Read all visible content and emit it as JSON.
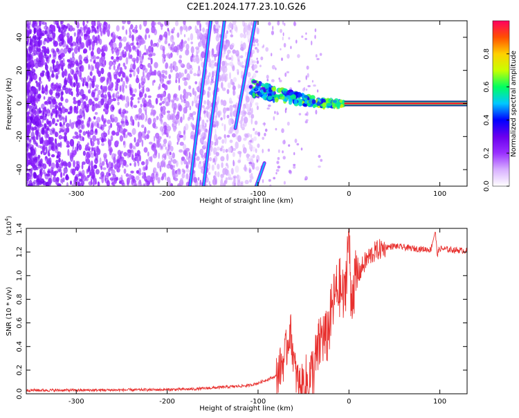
{
  "title": "C2E1.2024.177.23.10.G26",
  "colors": {
    "snr_line": "#e8302e",
    "axis": "#000000",
    "spectrogram_background": "#ffffff"
  },
  "chart_data": [
    {
      "type": "heatmap",
      "name_hint": "spectrogram",
      "xlabel": "Height of straight line (km)",
      "ylabel": "Frequency (Hz)",
      "xlim": [
        -355,
        130
      ],
      "ylim": [
        -50,
        50
      ],
      "x_ticks": [
        -300,
        -200,
        -100,
        0,
        100
      ],
      "y_ticks": [
        -40,
        -20,
        0,
        20,
        40
      ],
      "x_tick_labels": [
        "-300",
        "-200",
        "-100",
        "0",
        "100"
      ],
      "y_tick_labels": [
        "-40",
        "-20",
        "0",
        "20",
        "40"
      ],
      "colorbar": {
        "label": "Normalized spectral amplitude",
        "range": [
          0,
          1
        ],
        "ticks": [
          0.0,
          0.2,
          0.4,
          0.6,
          0.8
        ],
        "tick_labels": [
          "0.0",
          "0.2",
          "0.4",
          "0.6",
          "0.8"
        ],
        "colormap": [
          "#ffffff",
          "#d8b0ff",
          "#9a30ff",
          "#6a00ee",
          "#0000ff",
          "#00c8ff",
          "#00ff60",
          "#c8ff00",
          "#ffd000",
          "#ff5000",
          "#ff0060"
        ]
      },
      "features": {
        "carrier_line": {
          "frequency": 0,
          "x_from": -5,
          "x_to": 130,
          "amplitude": 0.95
        },
        "carrier_fluctuation": {
          "x_from": -108,
          "x_to": -5,
          "frequency_start": 9,
          "frequency_end": 0,
          "amplitude": 0.5
        },
        "diagonal_streaks": [
          {
            "x_start": -160,
            "f_start": -50,
            "x_end": -137,
            "f_end": 50
          },
          {
            "x_start": -175,
            "f_start": -50,
            "x_end": -152,
            "f_end": 50
          },
          {
            "x_start": -125,
            "f_start": -15,
            "x_end": -103,
            "f_end": 50
          },
          {
            "x_start": -102,
            "f_start": -50,
            "x_end": -93,
            "f_end": -36
          }
        ],
        "noise_region": {
          "x_from": -355,
          "x_to": -110,
          "density_trend": "decreasing to the right"
        }
      }
    },
    {
      "type": "line",
      "xlabel": "Height of straight line (km)",
      "ylabel": "SNR (10 * v/v)",
      "y_multiplier": "(x10",
      "y_multiplier_exp": "4",
      "y_multiplier_close": ")",
      "xlim": [
        -355,
        130
      ],
      "ylim": [
        0,
        14000
      ],
      "x_ticks": [
        -300,
        -200,
        -100,
        0,
        100
      ],
      "y_ticks": [
        0,
        2000,
        4000,
        6000,
        8000,
        10000,
        12000,
        14000
      ],
      "x_tick_labels": [
        "-300",
        "-200",
        "-100",
        "0",
        "100"
      ],
      "y_tick_labels": [
        "0.0",
        "0.2",
        "0.4",
        "0.6",
        "0.8",
        "1.0",
        "1.2",
        "1.4"
      ],
      "x": [
        -355,
        -300,
        -250,
        -200,
        -170,
        -150,
        -130,
        -110,
        -100,
        -90,
        -80,
        -72,
        -68,
        -65,
        -62,
        -60,
        -58,
        -55,
        -50,
        -45,
        -40,
        -35,
        -30,
        -25,
        -20,
        -15,
        -10,
        -5,
        0,
        2,
        5,
        10,
        15,
        20,
        25,
        30,
        40,
        50,
        60,
        70,
        80,
        90,
        95,
        97,
        100,
        110,
        120,
        130
      ],
      "y": [
        300,
        300,
        320,
        350,
        400,
        500,
        600,
        700,
        900,
        1200,
        1500,
        2800,
        4000,
        5500,
        4000,
        2200,
        1500,
        800,
        700,
        900,
        1800,
        3200,
        5000,
        4500,
        6500,
        8500,
        9000,
        7800,
        14000,
        8000,
        9200,
        10000,
        10800,
        11400,
        11800,
        12100,
        12400,
        12500,
        12400,
        12300,
        12250,
        12200,
        13800,
        11800,
        12300,
        12200,
        12150,
        12100
      ]
    }
  ]
}
